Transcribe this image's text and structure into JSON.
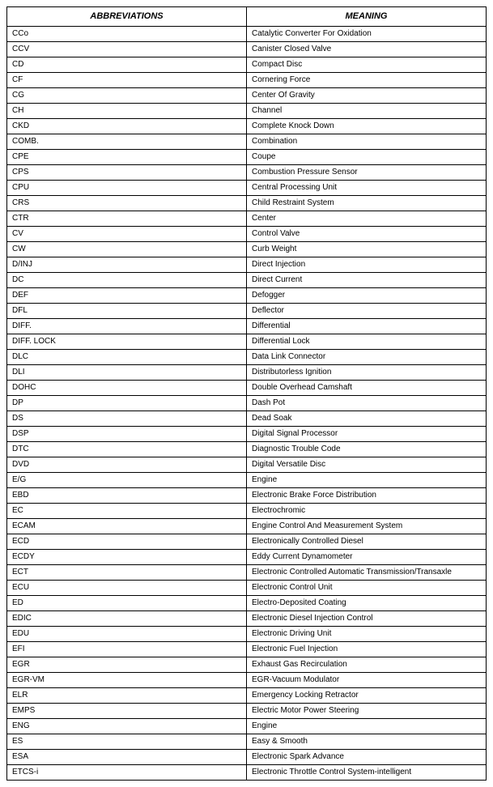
{
  "table": {
    "columns": [
      "ABBREVIATIONS",
      "MEANING"
    ],
    "col_widths_pct": [
      50,
      50
    ],
    "border_color": "#000000",
    "background_color": "#ffffff",
    "header_fontsize": 11,
    "cell_fontsize": 10,
    "rows": [
      [
        "CCo",
        "Catalytic Converter For Oxidation"
      ],
      [
        "CCV",
        "Canister Closed Valve"
      ],
      [
        "CD",
        "Compact Disc"
      ],
      [
        "CF",
        "Cornering Force"
      ],
      [
        "CG",
        "Center Of Gravity"
      ],
      [
        "CH",
        "Channel"
      ],
      [
        "CKD",
        "Complete Knock Down"
      ],
      [
        "COMB.",
        "Combination"
      ],
      [
        "CPE",
        "Coupe"
      ],
      [
        "CPS",
        "Combustion Pressure Sensor"
      ],
      [
        "CPU",
        "Central Processing Unit"
      ],
      [
        "CRS",
        "Child Restraint System"
      ],
      [
        "CTR",
        "Center"
      ],
      [
        "CV",
        "Control Valve"
      ],
      [
        "CW",
        "Curb Weight"
      ],
      [
        "D/INJ",
        "Direct Injection"
      ],
      [
        "DC",
        "Direct Current"
      ],
      [
        "DEF",
        "Defogger"
      ],
      [
        "DFL",
        "Deflector"
      ],
      [
        "DIFF.",
        "Differential"
      ],
      [
        "DIFF. LOCK",
        "Differential Lock"
      ],
      [
        "DLC",
        "Data Link Connector"
      ],
      [
        "DLI",
        "Distributorless Ignition"
      ],
      [
        "DOHC",
        "Double Overhead Camshaft"
      ],
      [
        "DP",
        "Dash Pot"
      ],
      [
        "DS",
        "Dead Soak"
      ],
      [
        "DSP",
        "Digital Signal Processor"
      ],
      [
        "DTC",
        "Diagnostic Trouble Code"
      ],
      [
        "DVD",
        "Digital Versatile Disc"
      ],
      [
        "E/G",
        "Engine"
      ],
      [
        "EBD",
        "Electronic Brake Force Distribution"
      ],
      [
        "EC",
        "Electrochromic"
      ],
      [
        "ECAM",
        "Engine Control And Measurement System"
      ],
      [
        "ECD",
        "Electronically Controlled Diesel"
      ],
      [
        "ECDY",
        "Eddy Current Dynamometer"
      ],
      [
        "ECT",
        "Electronic Controlled Automatic Transmission/Transaxle"
      ],
      [
        "ECU",
        "Electronic Control Unit"
      ],
      [
        "ED",
        "Electro-Deposited Coating"
      ],
      [
        "EDIC",
        "Electronic Diesel Injection Control"
      ],
      [
        "EDU",
        "Electronic Driving Unit"
      ],
      [
        "EFI",
        "Electronic Fuel Injection"
      ],
      [
        "EGR",
        "Exhaust Gas Recirculation"
      ],
      [
        "EGR-VM",
        "EGR-Vacuum Modulator"
      ],
      [
        "ELR",
        "Emergency Locking Retractor"
      ],
      [
        "EMPS",
        "Electric Motor Power Steering"
      ],
      [
        "ENG",
        "Engine"
      ],
      [
        "ES",
        "Easy & Smooth"
      ],
      [
        "ESA",
        "Electronic Spark Advance"
      ],
      [
        "ETCS-i",
        "Electronic Throttle Control System-intelligent"
      ]
    ]
  }
}
